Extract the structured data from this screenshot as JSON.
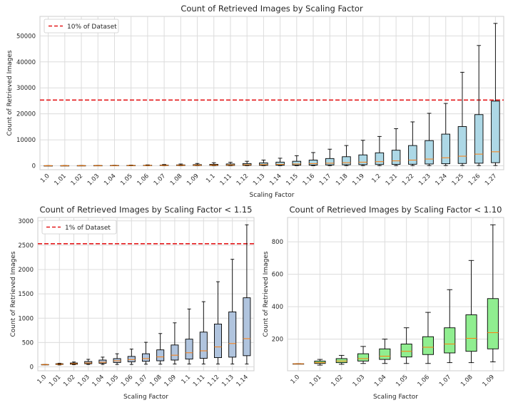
{
  "chart_data": [
    {
      "type": "boxplot",
      "title": "Count of Retrieved Images by Scaling Factor",
      "xlabel": "Scaling Factor",
      "ylabel": "Count of Retrieved Images",
      "ylim": [
        -1500,
        57500
      ],
      "yticks": [
        0,
        10000,
        20000,
        30000,
        40000,
        50000
      ],
      "grid": true,
      "box_color": "#add8e6",
      "median_color": "#ff7f0e",
      "reference_line": {
        "label": "10% of Dataset",
        "value": 25300,
        "color": "#e41a1c",
        "style": "dashed"
      },
      "legend_position": "upper-left",
      "categories": [
        "1.0",
        "1.01",
        "1.02",
        "1.03",
        "1.04",
        "1.05",
        "1.06",
        "1.07",
        "1.08",
        "1.09",
        "1.1",
        "1.11",
        "1.12",
        "1.13",
        "1.14",
        "1.15",
        "1.16",
        "1.17",
        "1.18",
        "1.19",
        "1.2",
        "1.21",
        "1.22",
        "1.23",
        "1.24",
        "1.25",
        "1.26",
        "1.27"
      ],
      "boxes": [
        {
          "whislo": 48,
          "q1": 48,
          "med": 48,
          "q3": 48,
          "whishi": 48
        },
        {
          "whislo": 40,
          "q1": 50,
          "med": 55,
          "q3": 65,
          "whishi": 75
        },
        {
          "whislo": 45,
          "q1": 55,
          "med": 65,
          "q3": 80,
          "whishi": 100
        },
        {
          "whislo": 50,
          "q1": 65,
          "med": 80,
          "q3": 110,
          "whishi": 155
        },
        {
          "whislo": 50,
          "q1": 75,
          "med": 95,
          "q3": 140,
          "whishi": 200
        },
        {
          "whislo": 50,
          "q1": 90,
          "med": 125,
          "q3": 170,
          "whishi": 270
        },
        {
          "whislo": 50,
          "q1": 105,
          "med": 150,
          "q3": 215,
          "whishi": 365
        },
        {
          "whislo": 55,
          "q1": 115,
          "med": 170,
          "q3": 270,
          "whishi": 505
        },
        {
          "whislo": 55,
          "q1": 125,
          "med": 205,
          "q3": 350,
          "whishi": 685
        },
        {
          "whislo": 60,
          "q1": 140,
          "med": 240,
          "q3": 450,
          "whishi": 905
        },
        {
          "whislo": 60,
          "q1": 160,
          "med": 290,
          "q3": 570,
          "whishi": 1190
        },
        {
          "whislo": 60,
          "q1": 175,
          "med": 330,
          "q3": 715,
          "whishi": 1340
        },
        {
          "whislo": 60,
          "q1": 190,
          "med": 410,
          "q3": 880,
          "whishi": 1750
        },
        {
          "whislo": 60,
          "q1": 200,
          "med": 480,
          "q3": 1130,
          "whishi": 2210
        },
        {
          "whislo": 60,
          "q1": 230,
          "med": 580,
          "q3": 1420,
          "whishi": 2920
        },
        {
          "whislo": 60,
          "q1": 260,
          "med": 700,
          "q3": 1750,
          "whishi": 3900
        },
        {
          "whislo": 70,
          "q1": 300,
          "med": 850,
          "q3": 2200,
          "whishi": 5100
        },
        {
          "whislo": 70,
          "q1": 350,
          "med": 1000,
          "q3": 2800,
          "whishi": 6400
        },
        {
          "whislo": 70,
          "q1": 400,
          "med": 1200,
          "q3": 3500,
          "whishi": 7800
        },
        {
          "whislo": 80,
          "q1": 450,
          "med": 1400,
          "q3": 4200,
          "whishi": 9800
        },
        {
          "whislo": 80,
          "q1": 500,
          "med": 1600,
          "q3": 5000,
          "whishi": 11300
        },
        {
          "whislo": 80,
          "q1": 550,
          "med": 1900,
          "q3": 6000,
          "whishi": 14300
        },
        {
          "whislo": 90,
          "q1": 600,
          "med": 2200,
          "q3": 7800,
          "whishi": 16900
        },
        {
          "whislo": 90,
          "q1": 700,
          "med": 2600,
          "q3": 9700,
          "whishi": 20200
        },
        {
          "whislo": 100,
          "q1": 800,
          "med": 3100,
          "q3": 12200,
          "whishi": 24000
        },
        {
          "whislo": 100,
          "q1": 900,
          "med": 3700,
          "q3": 15100,
          "whishi": 36000
        },
        {
          "whislo": 100,
          "q1": 1000,
          "med": 4500,
          "q3": 19700,
          "whishi": 46300
        },
        {
          "whislo": 110,
          "q1": 1200,
          "med": 5400,
          "q3": 24900,
          "whishi": 54800
        }
      ]
    },
    {
      "type": "boxplot",
      "title": "Count of Retrieved Images by Scaling Factor < 1.15",
      "xlabel": "Scaling Factor",
      "ylabel": "Count of Retrieved Images",
      "ylim": [
        -80,
        3070
      ],
      "yticks": [
        0,
        500,
        1000,
        1500,
        2000,
        2500,
        3000
      ],
      "grid": true,
      "box_color": "#b0c4de",
      "median_color": "#ff7f0e",
      "reference_line": {
        "label": "1% of Dataset",
        "value": 2530,
        "color": "#e41a1c",
        "style": "dashed"
      },
      "legend_position": "upper-left",
      "categories": [
        "1.0",
        "1.01",
        "1.02",
        "1.03",
        "1.04",
        "1.05",
        "1.06",
        "1.07",
        "1.08",
        "1.09",
        "1.1",
        "1.11",
        "1.12",
        "1.13",
        "1.14"
      ],
      "boxes": [
        {
          "whislo": 48,
          "q1": 48,
          "med": 48,
          "q3": 48,
          "whishi": 48
        },
        {
          "whislo": 40,
          "q1": 50,
          "med": 55,
          "q3": 65,
          "whishi": 75
        },
        {
          "whislo": 45,
          "q1": 55,
          "med": 65,
          "q3": 80,
          "whishi": 100
        },
        {
          "whislo": 50,
          "q1": 65,
          "med": 80,
          "q3": 110,
          "whishi": 155
        },
        {
          "whislo": 50,
          "q1": 75,
          "med": 95,
          "q3": 140,
          "whishi": 200
        },
        {
          "whislo": 50,
          "q1": 90,
          "med": 125,
          "q3": 170,
          "whishi": 270
        },
        {
          "whislo": 50,
          "q1": 105,
          "med": 150,
          "q3": 215,
          "whishi": 365
        },
        {
          "whislo": 55,
          "q1": 115,
          "med": 170,
          "q3": 270,
          "whishi": 505
        },
        {
          "whislo": 55,
          "q1": 125,
          "med": 205,
          "q3": 350,
          "whishi": 685
        },
        {
          "whislo": 60,
          "q1": 140,
          "med": 240,
          "q3": 450,
          "whishi": 905
        },
        {
          "whislo": 60,
          "q1": 160,
          "med": 290,
          "q3": 570,
          "whishi": 1190
        },
        {
          "whislo": 60,
          "q1": 175,
          "med": 330,
          "q3": 715,
          "whishi": 1340
        },
        {
          "whislo": 60,
          "q1": 190,
          "med": 410,
          "q3": 880,
          "whishi": 1750
        },
        {
          "whislo": 60,
          "q1": 200,
          "med": 480,
          "q3": 1130,
          "whishi": 2210
        },
        {
          "whislo": 60,
          "q1": 230,
          "med": 580,
          "q3": 1420,
          "whishi": 2920
        }
      ]
    },
    {
      "type": "boxplot",
      "title": "Count of Retrieved Images by Scaling Factor < 1.10",
      "xlabel": "Scaling Factor",
      "ylabel": "Count of Retrieved Images",
      "ylim": [
        5,
        950
      ],
      "yticks": [
        200,
        400,
        600,
        800
      ],
      "grid": true,
      "box_color": "#90ee90",
      "median_color": "#ff7f0e",
      "categories": [
        "1.0",
        "1.01",
        "1.02",
        "1.03",
        "1.04",
        "1.05",
        "1.06",
        "1.07",
        "1.08",
        "1.09"
      ],
      "boxes": [
        {
          "whislo": 48,
          "q1": 48,
          "med": 48,
          "q3": 48,
          "whishi": 48
        },
        {
          "whislo": 40,
          "q1": 50,
          "med": 55,
          "q3": 65,
          "whishi": 75
        },
        {
          "whislo": 45,
          "q1": 55,
          "med": 65,
          "q3": 80,
          "whishi": 100
        },
        {
          "whislo": 50,
          "q1": 65,
          "med": 80,
          "q3": 110,
          "whishi": 155
        },
        {
          "whislo": 50,
          "q1": 75,
          "med": 95,
          "q3": 140,
          "whishi": 200
        },
        {
          "whislo": 50,
          "q1": 90,
          "med": 125,
          "q3": 170,
          "whishi": 270
        },
        {
          "whislo": 50,
          "q1": 105,
          "med": 150,
          "q3": 215,
          "whishi": 365
        },
        {
          "whislo": 55,
          "q1": 115,
          "med": 170,
          "q3": 270,
          "whishi": 505
        },
        {
          "whislo": 55,
          "q1": 125,
          "med": 205,
          "q3": 350,
          "whishi": 685
        },
        {
          "whislo": 60,
          "q1": 140,
          "med": 240,
          "q3": 450,
          "whishi": 905
        }
      ]
    }
  ]
}
